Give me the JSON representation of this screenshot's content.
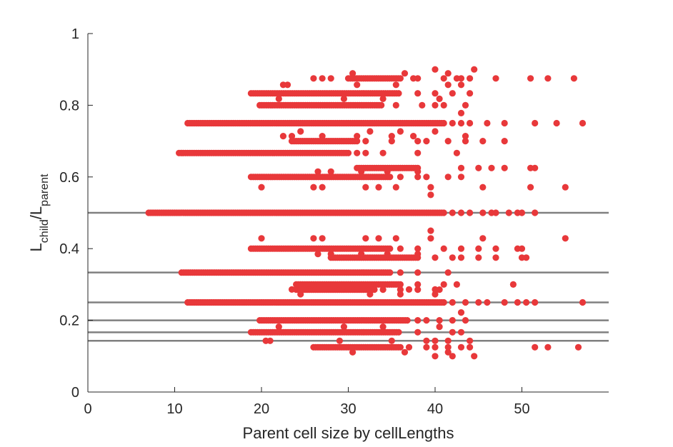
{
  "chart_data": {
    "type": "scatter",
    "title": "",
    "xlabel": "Parent cell size by cellLengths",
    "ylabel": {
      "main1": "L",
      "sub1": "child",
      "sep": "/L",
      "sub2": "parent"
    },
    "xlim": [
      0,
      60
    ],
    "ylim": [
      0,
      1
    ],
    "xticks": [
      0,
      10,
      20,
      30,
      40,
      50
    ],
    "xtick_labels": [
      "0",
      "10",
      "20",
      "30",
      "40",
      "50"
    ],
    "yticks": [
      0,
      0.2,
      0.4,
      0.6,
      0.8,
      1
    ],
    "ytick_labels": [
      "0",
      "0.2",
      "0.4",
      "0.6",
      "0.8",
      "1"
    ],
    "grid": false,
    "colors": {
      "points": "#e8383a",
      "reference_lines": "#808080",
      "axis": "#262626"
    },
    "reference_lines": [
      0.5,
      0.3333,
      0.25,
      0.2,
      0.1667,
      0.1429
    ],
    "scatter_rows": [
      {
        "y": 0.5,
        "ranges": [
          [
            7.0,
            41.0
          ]
        ],
        "points": [
          42,
          43,
          44,
          45.5,
          46.5,
          47,
          48.5,
          49.5,
          50,
          51.5
        ]
      },
      {
        "y": 0.3333,
        "ranges": [
          [
            10.8,
            34.8
          ]
        ],
        "points": [
          36,
          38,
          41.5
        ]
      },
      {
        "y": 0.25,
        "ranges": [
          [
            11.5,
            41.0
          ]
        ],
        "points": [
          42,
          43.5,
          45,
          46,
          48,
          49.5,
          50.5,
          51.5,
          57
        ]
      },
      {
        "y": 0.6667,
        "ranges": [
          [
            10.5,
            30.0
          ]
        ],
        "points": [
          31,
          32,
          34,
          38,
          42.5
        ]
      },
      {
        "y": 0.75,
        "ranges": [
          [
            11.5,
            41.0
          ]
        ],
        "points": [
          42,
          43,
          44,
          46,
          48,
          51.5,
          54,
          57
        ]
      },
      {
        "y": 0.8333,
        "ranges": [
          [
            18.8,
            36.0
          ]
        ],
        "points": [
          38,
          40,
          42,
          44
        ]
      },
      {
        "y": 0.8,
        "ranges": [
          [
            19.8,
            34.0
          ]
        ],
        "points": [
          35.5,
          38.5,
          40,
          41,
          43.5
        ]
      },
      {
        "y": 0.6,
        "ranges": [
          [
            18.8,
            35.0
          ]
        ],
        "points": [
          36,
          38,
          39,
          41.5,
          43
        ]
      },
      {
        "y": 0.4,
        "ranges": [
          [
            18.8,
            35.0
          ]
        ],
        "points": [
          36,
          38,
          41,
          43,
          45,
          47,
          49.5,
          50
        ]
      },
      {
        "y": 0.2,
        "ranges": [
          [
            19.8,
            37.0
          ]
        ],
        "points": [
          38,
          39,
          40.5,
          42,
          43.5
        ]
      },
      {
        "y": 0.1667,
        "ranges": [
          [
            18.8,
            36.0
          ]
        ],
        "points": [
          38,
          42,
          43
        ]
      },
      {
        "y": 0.1429,
        "ranges": [],
        "points": [
          20.5,
          21,
          29,
          35,
          39,
          40,
          41.5,
          44
        ]
      },
      {
        "y": 0.125,
        "ranges": [
          [
            26.0,
            36.0
          ]
        ],
        "points": [
          37,
          39,
          40,
          41.5,
          43,
          44,
          51.5,
          53,
          56.5
        ]
      },
      {
        "y": 0.875,
        "ranges": [
          [
            30.0,
            36.0
          ]
        ],
        "points": [
          26,
          27,
          28,
          37.5,
          38,
          41,
          42.5,
          43,
          44,
          47,
          51,
          53,
          56
        ]
      },
      {
        "y": 0.7,
        "ranges": [
          [
            23.5,
            31.0
          ]
        ],
        "points": [
          32,
          35,
          38,
          39,
          41.5,
          43.5,
          45.5,
          48
        ]
      },
      {
        "y": 0.625,
        "ranges": [
          [
            31.0,
            38.0
          ]
        ],
        "points": [
          43,
          45,
          46.5,
          48,
          51,
          51.5
        ]
      },
      {
        "y": 0.375,
        "ranges": [
          [
            28.0,
            38.0
          ]
        ],
        "points": [
          40,
          42,
          43,
          45,
          47,
          50,
          50.5
        ]
      },
      {
        "y": 0.3,
        "ranges": [
          [
            24,
            36
          ]
        ],
        "points": [
          38,
          41,
          42.5,
          49
        ]
      },
      {
        "y": 0.2857,
        "ranges": [
          [
            24,
            33
          ]
        ],
        "points": [
          34,
          36,
          38,
          40.5
        ]
      },
      {
        "y": 0.5714,
        "ranges": [],
        "points": [
          20,
          26,
          27,
          32,
          33.5,
          35.5,
          39.5,
          45.5,
          51,
          55
        ]
      },
      {
        "y": 0.4286,
        "ranges": [],
        "points": [
          20,
          26,
          27,
          32,
          33.5,
          35.5,
          39.5,
          45.5,
          55
        ]
      },
      {
        "y": 0.9,
        "ranges": [],
        "points": [
          40,
          44.5
        ]
      },
      {
        "y": 0.1,
        "ranges": [],
        "points": [
          40,
          42,
          44.5
        ]
      },
      {
        "y": 0.45,
        "ranges": [],
        "points": [
          39.5
        ]
      },
      {
        "y": 0.55,
        "ranges": [],
        "points": [
          39.5
        ]
      },
      {
        "y": 0.222,
        "ranges": [],
        "points": [
          43
        ]
      },
      {
        "y": 0.778,
        "ranges": [],
        "points": [
          43
        ]
      },
      {
        "y": 0.857,
        "ranges": [],
        "points": [
          22.5,
          23,
          31,
          35.5,
          41.5,
          43
        ]
      },
      {
        "y": 0.714,
        "ranges": [],
        "points": [
          22.5,
          23.5,
          27,
          31,
          35,
          37.5,
          43.5
        ]
      },
      {
        "y": 0.286,
        "ranges": [],
        "points": [
          23.5,
          24.5,
          30,
          31,
          37,
          40
        ]
      },
      {
        "y": 0.615,
        "ranges": [],
        "points": [
          26.5,
          28,
          31.5,
          34.5,
          38
        ]
      },
      {
        "y": 0.385,
        "ranges": [],
        "points": [
          26.5,
          28,
          31.5,
          34.5,
          38
        ]
      },
      {
        "y": 0.727,
        "ranges": [],
        "points": [
          24.5,
          32.5,
          36,
          40
        ]
      },
      {
        "y": 0.273,
        "ranges": [],
        "points": [
          24.5,
          32.5,
          36,
          40
        ]
      },
      {
        "y": 0.182,
        "ranges": [],
        "points": [
          22,
          29.5,
          34,
          40.5
        ]
      },
      {
        "y": 0.818,
        "ranges": [],
        "points": [
          22,
          29.5,
          34,
          40.5
        ]
      },
      {
        "y": 0.111,
        "ranges": [],
        "points": [
          30.5,
          36.5,
          41.5
        ]
      },
      {
        "y": 0.889,
        "ranges": [],
        "points": [
          30.5,
          36.5,
          41.5
        ]
      }
    ]
  }
}
